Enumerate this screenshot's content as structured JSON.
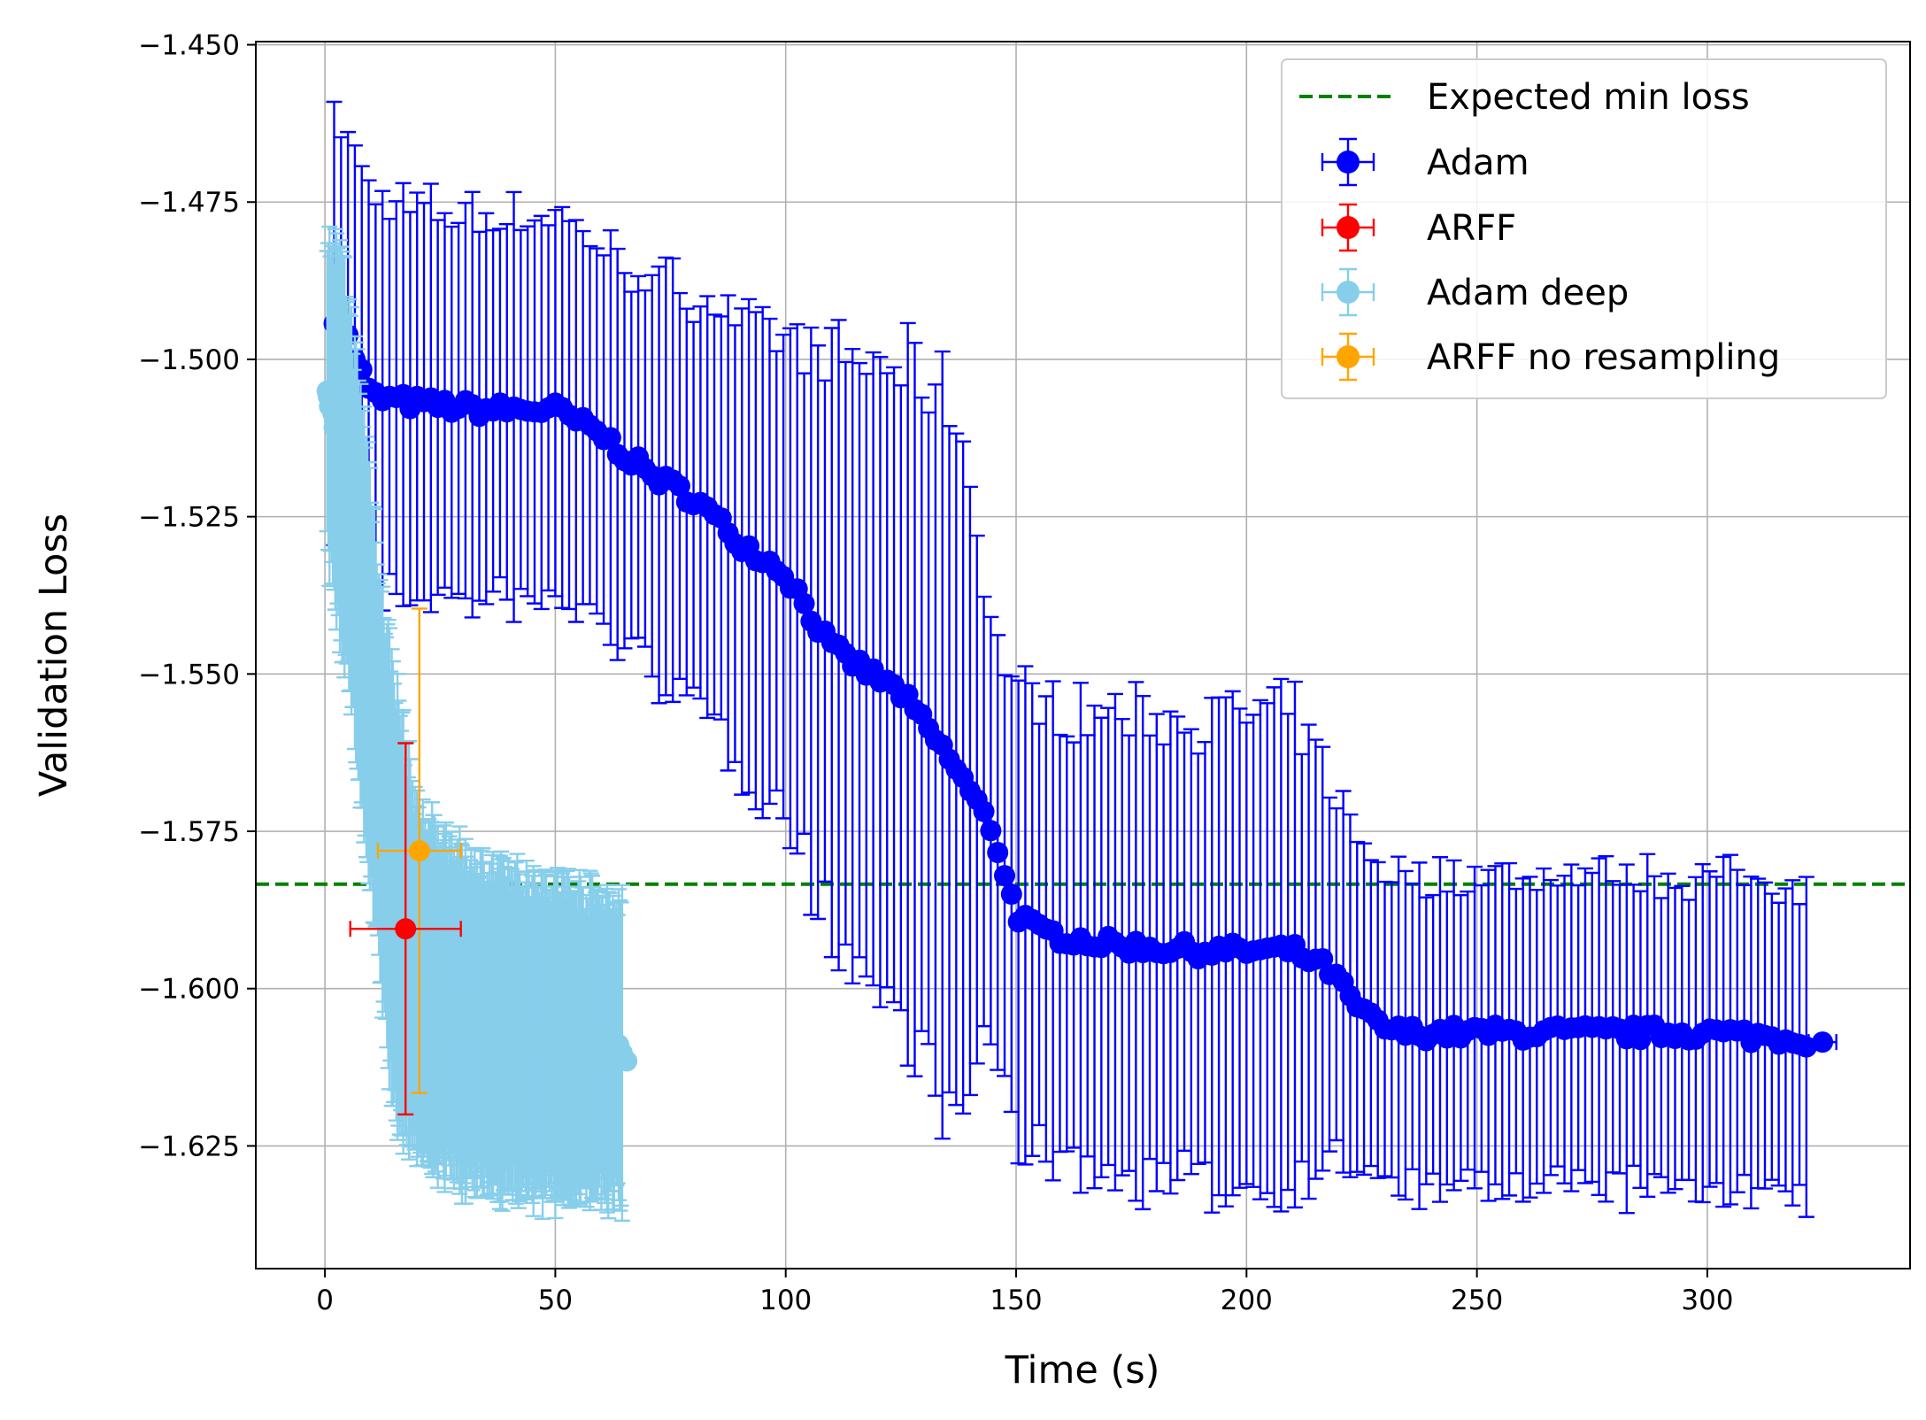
{
  "chart_data": {
    "type": "scatter",
    "title": "",
    "xlabel": "Time (s)",
    "ylabel": "Validation Loss",
    "xlim": [
      -15,
      344
    ],
    "ylim": [
      -1.6445,
      -1.4495
    ],
    "x_ticks": [
      0,
      50,
      100,
      150,
      200,
      250,
      300
    ],
    "x_tick_labels": [
      "0",
      "50",
      "100",
      "150",
      "200",
      "250",
      "300"
    ],
    "y_ticks": [
      -1.45,
      -1.475,
      -1.5,
      -1.525,
      -1.55,
      -1.575,
      -1.6,
      -1.625
    ],
    "y_tick_labels": [
      "−1.450",
      "−1.475",
      "−1.500",
      "−1.525",
      "−1.550",
      "−1.575",
      "−1.600",
      "−1.625"
    ],
    "grid": true,
    "legend_position": "top-right",
    "reference_line": {
      "name": "Expected min loss",
      "y": -1.5834,
      "color": "#008000",
      "style": "dashed"
    },
    "series": [
      {
        "name": "Adam",
        "color": "#0000ff",
        "knots_x": [
          3,
          10,
          20,
          35,
          50,
          60,
          70,
          80,
          90,
          100,
          110,
          125,
          137,
          145,
          150,
          155,
          170,
          190,
          210,
          218,
          225,
          232,
          240,
          260,
          280,
          300,
          322
        ],
        "knots_y": [
          -1.493,
          -1.506,
          -1.507,
          -1.508,
          -1.508,
          -1.512,
          -1.518,
          -1.522,
          -1.529,
          -1.534,
          -1.546,
          -1.553,
          -1.565,
          -1.575,
          -1.588,
          -1.591,
          -1.593,
          -1.594,
          -1.594,
          -1.597,
          -1.604,
          -1.607,
          -1.607,
          -1.607,
          -1.607,
          -1.607,
          -1.608
        ],
        "knots_err": [
          0.032,
          0.032,
          0.031,
          0.031,
          0.031,
          0.03,
          0.031,
          0.033,
          0.035,
          0.038,
          0.046,
          0.052,
          0.058,
          0.032,
          0.036,
          0.036,
          0.037,
          0.037,
          0.038,
          0.03,
          0.026,
          0.025,
          0.025,
          0.025,
          0.025,
          0.025,
          0.025
        ],
        "x_start": 2,
        "x_end": 322,
        "x_step": 1.5,
        "last_point": {
          "x": 325,
          "y": -1.6085,
          "xerr": 3
        }
      },
      {
        "name": "ARFF",
        "color": "#ff0000",
        "points": [
          {
            "x": 17.5,
            "y": -1.5905,
            "xerr": 12,
            "yerr": 0.0295
          }
        ]
      },
      {
        "name": "Adam deep",
        "color": "#87ceeb",
        "knots_x": [
          0.5,
          3,
          6,
          9,
          12,
          15,
          20,
          30,
          40,
          50,
          60,
          64
        ],
        "knots_y": [
          -1.506,
          -1.512,
          -1.526,
          -1.546,
          -1.566,
          -1.586,
          -1.599,
          -1.605,
          -1.607,
          -1.608,
          -1.609,
          -1.61
        ],
        "knots_err": [
          0.025,
          0.03,
          0.03,
          0.033,
          0.031,
          0.035,
          0.027,
          0.026,
          0.025,
          0.025,
          0.024,
          0.024
        ],
        "x_start": 0.5,
        "x_end": 64.5,
        "x_step": 0.25,
        "last_point": {
          "x": 65.5,
          "y": -1.6115,
          "xerr": 0
        }
      },
      {
        "name": "ARFF no resampling",
        "color": "#ffa500",
        "points": [
          {
            "x": 20.5,
            "y": -1.5781,
            "xerr": 9,
            "yerr": 0.0385
          }
        ]
      }
    ]
  }
}
